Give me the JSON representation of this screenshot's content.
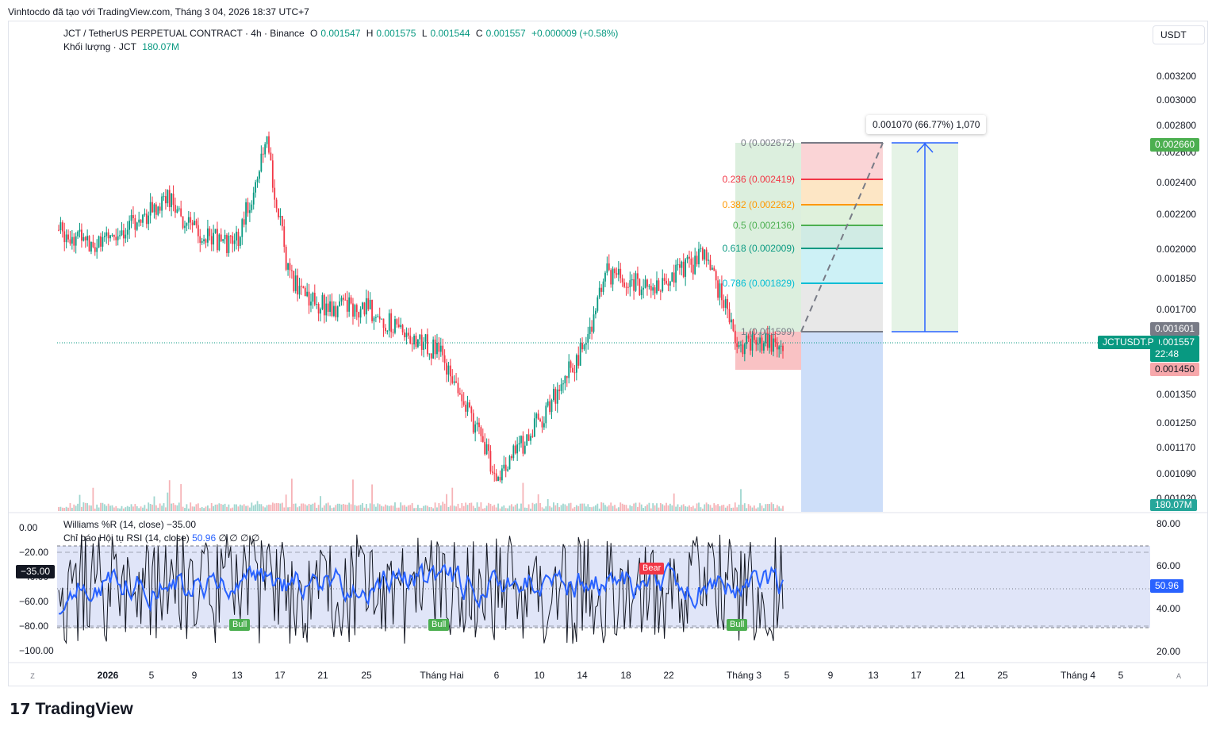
{
  "caption": "Vinhtocdo đã tạo với TradingView.com, Tháng 3 04, 2026 18:37 UTC+7",
  "legend": {
    "symbol": "JCT / TetherUS PERPETUAL CONTRACT · 4h · Binance",
    "o_label": "O",
    "o": "0.001547",
    "h_label": "H",
    "h": "0.001575",
    "l_label": "L",
    "l": "0.001544",
    "c_label": "C",
    "c": "0.001557",
    "change": "+0.000009 (+0.58%)",
    "volume_label": "Khối lượng · JCT",
    "volume": "180.07M"
  },
  "currency": "USDT",
  "price_axis": [
    "0.003200",
    "0.003000",
    "0.002800",
    "0.002600",
    "0.002400",
    "0.002200",
    "0.002000",
    "0.001850",
    "0.001700",
    "0.001601",
    "0.001450",
    "0.001350",
    "0.001250",
    "0.001170",
    "0.001090",
    "0.001020"
  ],
  "price_tags": {
    "target": "0.002660",
    "entry": "0.001601",
    "last": "0.001557",
    "countdown": "22:48",
    "stop": "0.001450",
    "volume": "180.07M",
    "symbol_tag": "JCTUSDT.P"
  },
  "measure_tooltip": "0.001070 (66.77%) 1,070",
  "fib_levels": [
    {
      "label": "0 (0.002672)",
      "level": 0,
      "price": 0.002672,
      "color": "#787b86"
    },
    {
      "label": "0.236 (0.002419)",
      "level": 0.236,
      "price": 0.002419,
      "color": "#f23645"
    },
    {
      "label": "0.382 (0.002262)",
      "level": 0.382,
      "price": 0.002262,
      "color": "#ff9800"
    },
    {
      "label": "0.5 (0.002136)",
      "level": 0.5,
      "price": 0.002136,
      "color": "#4caf50"
    },
    {
      "label": "0.618 (0.002009)",
      "level": 0.618,
      "price": 0.002009,
      "color": "#089981"
    },
    {
      "label": "0.786 (0.001829)",
      "level": 0.786,
      "price": 0.001829,
      "color": "#00bcd4"
    },
    {
      "label": "1 (0.001599)",
      "level": 1,
      "price": 0.001599,
      "color": "#787b86"
    }
  ],
  "indicator": {
    "wr_title": "Williams %R (14, close)",
    "wr_value": "−35.00",
    "rsi_title": "Chỉ báo Hội tụ RSI (14, close)",
    "rsi_value": "50.96",
    "rsi_extra": "∅  ∅  ∅  ∅",
    "left_axis": [
      "0.00",
      "−20.00",
      "−40.00",
      "−60.00",
      "−80.00",
      "−100.00"
    ],
    "right_axis": [
      "80.00",
      "60.00",
      "40.00",
      "20.00"
    ],
    "wr_tag": "−35.00",
    "rsi_tag": "50.96",
    "signals": [
      {
        "text": "Bull",
        "color": "#4caf50"
      },
      {
        "text": "Bull",
        "color": "#4caf50"
      },
      {
        "text": "Bear",
        "color": "#f23645"
      },
      {
        "text": "Bull",
        "color": "#4caf50"
      }
    ]
  },
  "time_axis": [
    "2026",
    "5",
    "9",
    "13",
    "17",
    "21",
    "25",
    "Tháng Hai",
    "6",
    "10",
    "14",
    "18",
    "22",
    "Tháng 3",
    "5",
    "9",
    "13",
    "17",
    "21",
    "25",
    "Tháng 4",
    "5"
  ],
  "scale_buttons": {
    "left": "Z",
    "right": "A"
  },
  "brand": "TradingView",
  "chart_data": {
    "type": "candlestick",
    "symbol": "JCTUSDT.P",
    "timeframe": "4h",
    "exchange": "Binance",
    "ylim": [
      0.00098,
      0.0033
    ],
    "scale": "log",
    "price_path_approx": [
      {
        "x": "2025-12-28",
        "close": 0.00211
      },
      {
        "x": "2026-01-01",
        "close": 0.00202
      },
      {
        "x": "2026-01-05",
        "close": 0.00221
      },
      {
        "x": "2026-01-07",
        "close": 0.00232
      },
      {
        "x": "2026-01-09",
        "close": 0.00212
      },
      {
        "x": "2026-01-13",
        "close": 0.00201
      },
      {
        "x": "2026-01-16",
        "close": 0.00265
      },
      {
        "x": "2026-01-18",
        "close": 0.00185
      },
      {
        "x": "2026-01-21",
        "close": 0.00172
      },
      {
        "x": "2026-01-25",
        "close": 0.00171
      },
      {
        "x": "2026-02-01",
        "close": 0.0015
      },
      {
        "x": "2026-02-06",
        "close": 0.00108
      },
      {
        "x": "2026-02-10",
        "close": 0.00127
      },
      {
        "x": "2026-02-14",
        "close": 0.00155
      },
      {
        "x": "2026-02-16",
        "close": 0.00188
      },
      {
        "x": "2026-02-20",
        "close": 0.0018
      },
      {
        "x": "2026-02-25",
        "close": 0.00197
      },
      {
        "x": "2026-02-28",
        "close": 0.00155
      },
      {
        "x": "2026-03-04",
        "close": 0.001557
      }
    ],
    "long_position": {
      "entry": 0.001601,
      "target": 0.00266,
      "stop": 0.00145
    },
    "last_price": 0.001557,
    "volume_last": "180.07M",
    "williams_r_last": -35.0,
    "rsi_last": 50.96
  }
}
